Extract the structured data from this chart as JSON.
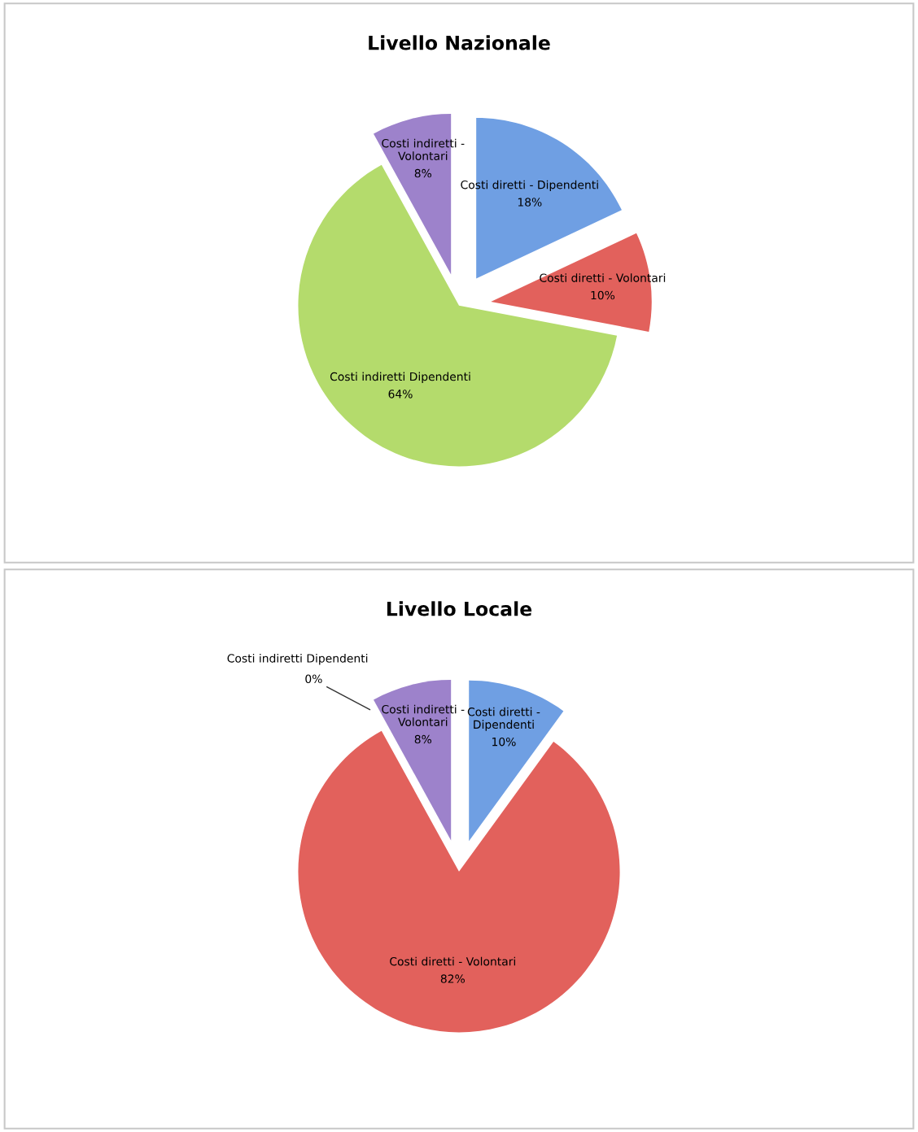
{
  "chart_data": [
    {
      "type": "pie",
      "title": "Livello Nazionale",
      "categories": [
        "Costi diretti - Dipendenti",
        "Costi diretti - Volontari",
        "Costi indiretti Dipendenti",
        "Costi indiretti -\nVolontari"
      ],
      "values": [
        18,
        10,
        64,
        8
      ],
      "value_labels": [
        "18%",
        "10%",
        "64%",
        "8%"
      ],
      "data_labels": true,
      "legend": false,
      "colors": [
        "#6f9fe3",
        "#e2615c",
        "#b4db6c",
        "#9d82cb"
      ]
    },
    {
      "type": "pie",
      "title": "Livello Locale",
      "categories": [
        "Costi diretti -\nDipendenti",
        "Costi diretti - Volontari",
        "Costi indiretti Dipendenti",
        "Costi indiretti -\nVolontari"
      ],
      "values": [
        10,
        82,
        0,
        8
      ],
      "value_labels": [
        "10%",
        "82%",
        "0%",
        "8%"
      ],
      "data_labels": true,
      "legend": false,
      "colors": [
        "#6f9fe3",
        "#e2615c",
        "#b4db6c",
        "#9d82cb"
      ]
    }
  ]
}
